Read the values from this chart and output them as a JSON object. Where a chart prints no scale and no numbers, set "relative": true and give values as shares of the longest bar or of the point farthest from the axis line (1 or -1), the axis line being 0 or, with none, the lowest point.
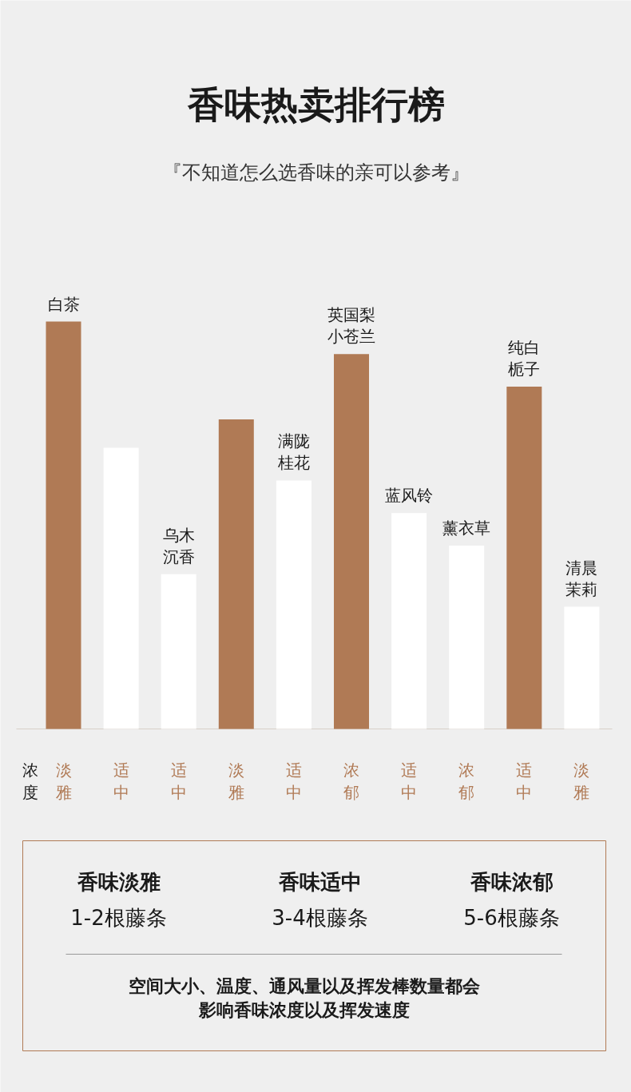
{
  "chart_data": {
    "type": "bar",
    "title": "香味热卖排行榜",
    "subtitle": "『不知道怎么选香味的亲可以参考』",
    "relative": true,
    "categories": [
      "白茶",
      null,
      "乌木沉香",
      null,
      "满陇桂花",
      "英国梨小苍兰",
      "蓝风铃",
      "薰衣草",
      "纯白栀子",
      "清晨茉莉"
    ],
    "values": [
      1,
      0.69,
      0.38,
      0.76,
      0.61,
      0.92,
      0.53,
      0.45,
      0.84,
      0.3
    ],
    "colors": [
      "#b07a55",
      "#ffffff",
      "#ffffff",
      "#b07a55",
      "#ffffff",
      "#b07a55",
      "#ffffff",
      "#ffffff",
      "#b07a55",
      "#ffffff"
    ],
    "annotations": [
      "浓度",
      "淡雅",
      "适中",
      "适中",
      "淡雅",
      "适中",
      "浓郁",
      "适中",
      "浓郁",
      "适中",
      "淡雅",
      "香味淡雅",
      "1-2根藤条",
      "香味适中",
      "3-4根藤条",
      "香味浓郁",
      "5-6根藤条",
      "空间大小、温度、通风量以及挥发棒数量都会",
      "影响香味浓度以及挥发速度"
    ]
  }
}
